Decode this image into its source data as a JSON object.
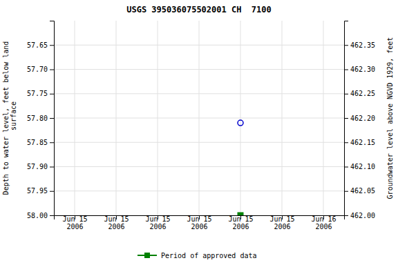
{
  "chart_data": {
    "type": "scatter",
    "title": "USGS 395036075502001 CH  7100",
    "y_label": "Depth to water level, feet below land\n surface",
    "y2_label": "Groundwater level above NGVD 1929, feet",
    "categories": [
      "Jun 15\n2006",
      "Jun 15\n2006",
      "Jun 15\n2006",
      "Jun 15\n2006",
      "Jun 15\n2006",
      "Jun 15\n2006",
      "Jun 16\n2006"
    ],
    "series": [
      {
        "color": "#0000cc",
        "marker": "circle",
        "values": [
          null,
          null,
          null,
          null,
          57.81,
          null,
          null
        ]
      },
      {
        "name": "Period of approved data",
        "color": "#008000",
        "marker": "square",
        "values": [
          null,
          null,
          null,
          null,
          58,
          null,
          null
        ]
      }
    ],
    "ylim": [
      58,
      57.6
    ],
    "yticks": [
      57.65,
      {
        "value": 57.7,
        "label": "57.70"
      },
      57.75,
      {
        "value": 57.8,
        "label": "57.80"
      },
      57.85,
      {
        "value": 57.9,
        "label": "57.90"
      },
      57.95,
      {
        "value": 58,
        "label": "58.00"
      }
    ],
    "y2lim": [
      462,
      462.4
    ],
    "y2ticks": [
      462.35,
      {
        "value": 462.3,
        "label": "462.30"
      },
      462.25,
      {
        "value": 462.2,
        "label": "462.20"
      },
      462.15,
      {
        "value": 462.1,
        "label": "462.10"
      },
      462.05,
      {
        "value": 462,
        "label": "462.00"
      }
    ],
    "grid": true,
    "legend": "bottom"
  }
}
